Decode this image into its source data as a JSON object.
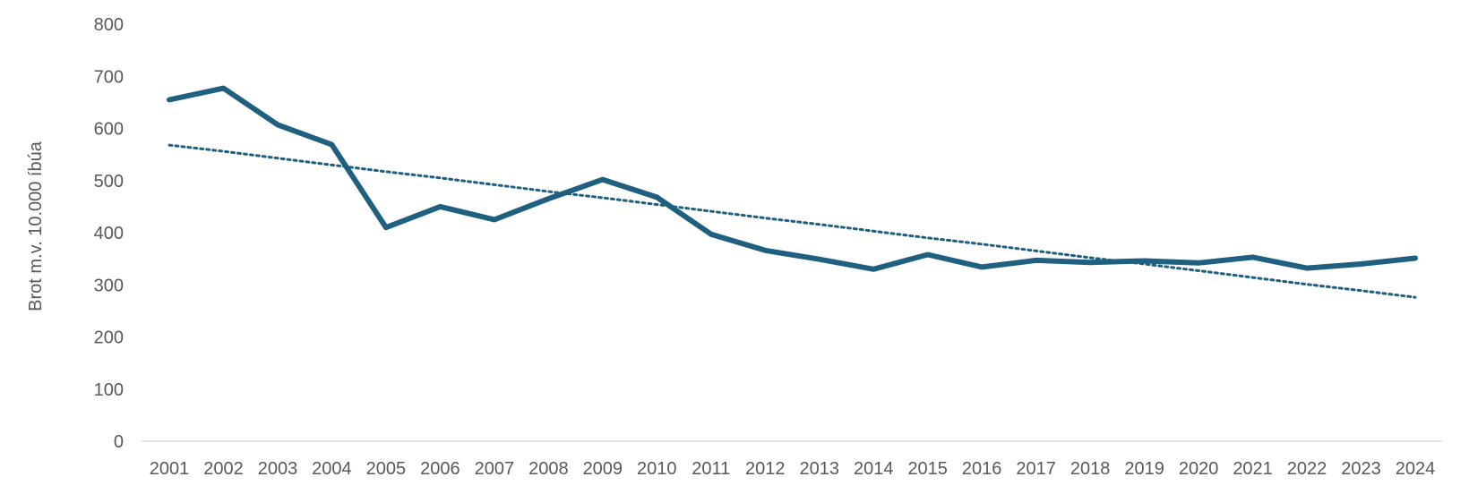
{
  "chart_data": {
    "type": "line",
    "title": "",
    "xlabel": "",
    "ylabel": "Brot m.v. 10.000 íbúa",
    "x": [
      "2001",
      "2002",
      "2003",
      "2004",
      "2005",
      "2006",
      "2007",
      "2008",
      "2009",
      "2010",
      "2011",
      "2012",
      "2013",
      "2014",
      "2015",
      "2016",
      "2017",
      "2018",
      "2019",
      "2020",
      "2021",
      "2022",
      "2023",
      "2024"
    ],
    "series": [
      {
        "values": [
          655,
          677,
          607,
          569,
          410,
          450,
          425,
          465,
          502,
          468,
          397,
          366,
          349,
          330,
          358,
          334,
          347,
          343,
          346,
          342,
          353,
          332,
          340,
          351
        ],
        "color": "#1F5F7F",
        "style": "solid"
      },
      {
        "values": [
          568,
          556,
          543,
          530,
          517,
          505,
          492,
          479,
          467,
          454,
          441,
          428,
          416,
          403,
          390,
          378,
          365,
          352,
          340,
          327,
          314,
          301,
          289,
          276
        ],
        "color": "#1F5F7F",
        "style": "dotted",
        "role": "trendline"
      }
    ],
    "yticks": [
      "0",
      "100",
      "200",
      "300",
      "400",
      "500",
      "600",
      "700",
      "800"
    ],
    "ylim": [
      0,
      800
    ],
    "grid": false,
    "legend": "none"
  }
}
